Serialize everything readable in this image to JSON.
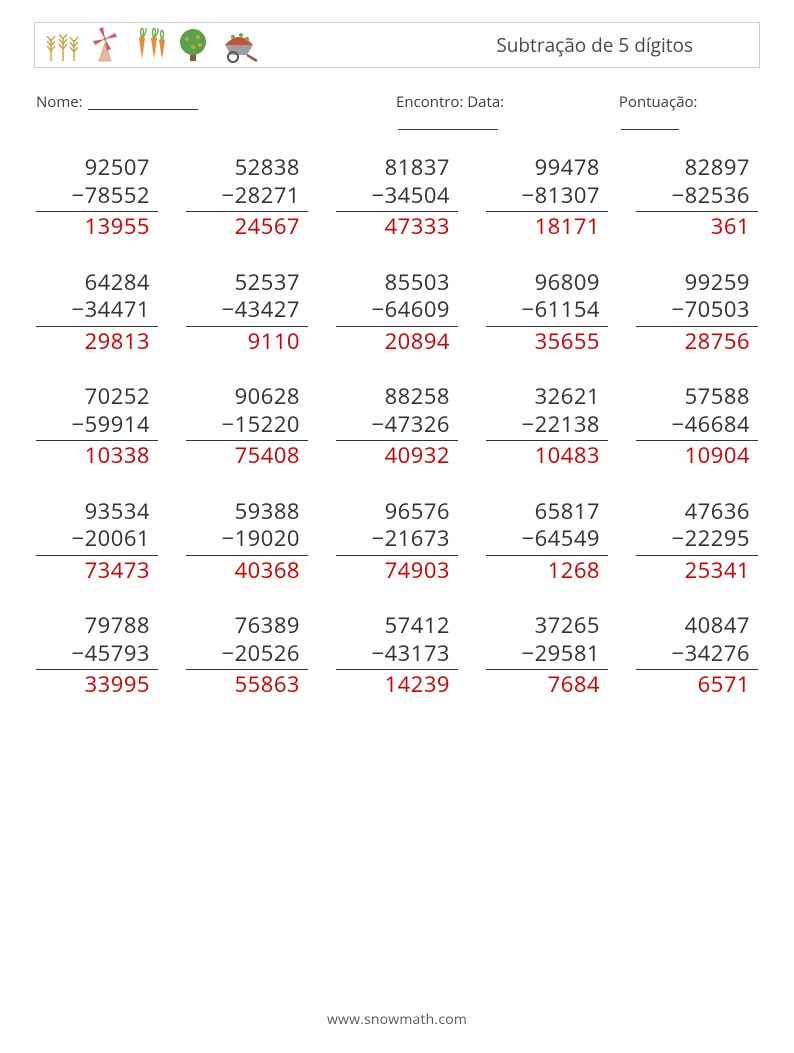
{
  "title": "Subtração de 5 dígitos",
  "labels": {
    "name": "Nome:",
    "date": "Encontro: Data:",
    "score": "Pontuação:"
  },
  "footer": "www.snowmath.com",
  "colors": {
    "text": "#353535",
    "answer": "#d40000",
    "rule": "#333333",
    "border": "#cfcfcf",
    "background": "#ffffff"
  },
  "typography": {
    "title_fontsize": 19,
    "meta_fontsize": 15,
    "problem_fontsize": 22,
    "footer_fontsize": 14
  },
  "layout": {
    "columns": 5,
    "rows": 5,
    "column_gap": 28,
    "row_gap": 28
  },
  "icons": [
    {
      "name": "wheat-icon",
      "emoji": "🌾",
      "color": "#d8b24a"
    },
    {
      "name": "windmill-icon",
      "emoji": "🍃",
      "color": "#d65a5a"
    },
    {
      "name": "carrots-icon",
      "emoji": "🥕",
      "color": "#e98c3a"
    },
    {
      "name": "tree-icon",
      "emoji": "🌳",
      "color": "#4c9b4c"
    },
    {
      "name": "wheelbarrow-icon",
      "emoji": "🧺",
      "color": "#c94f3d"
    }
  ],
  "problems": [
    {
      "a": 92507,
      "b": 78552,
      "ans": 13955
    },
    {
      "a": 52838,
      "b": 28271,
      "ans": 24567
    },
    {
      "a": 81837,
      "b": 34504,
      "ans": 47333
    },
    {
      "a": 99478,
      "b": 81307,
      "ans": 18171
    },
    {
      "a": 82897,
      "b": 82536,
      "ans": 361
    },
    {
      "a": 64284,
      "b": 34471,
      "ans": 29813
    },
    {
      "a": 52537,
      "b": 43427,
      "ans": 9110
    },
    {
      "a": 85503,
      "b": 64609,
      "ans": 20894
    },
    {
      "a": 96809,
      "b": 61154,
      "ans": 35655
    },
    {
      "a": 99259,
      "b": 70503,
      "ans": 28756
    },
    {
      "a": 70252,
      "b": 59914,
      "ans": 10338
    },
    {
      "a": 90628,
      "b": 15220,
      "ans": 75408
    },
    {
      "a": 88258,
      "b": 47326,
      "ans": 40932
    },
    {
      "a": 32621,
      "b": 22138,
      "ans": 10483
    },
    {
      "a": 57588,
      "b": 46684,
      "ans": 10904
    },
    {
      "a": 93534,
      "b": 20061,
      "ans": 73473
    },
    {
      "a": 59388,
      "b": 19020,
      "ans": 40368
    },
    {
      "a": 96576,
      "b": 21673,
      "ans": 74903
    },
    {
      "a": 65817,
      "b": 64549,
      "ans": 1268
    },
    {
      "a": 47636,
      "b": 22295,
      "ans": 25341
    },
    {
      "a": 79788,
      "b": 45793,
      "ans": 33995
    },
    {
      "a": 76389,
      "b": 20526,
      "ans": 55863
    },
    {
      "a": 57412,
      "b": 43173,
      "ans": 14239
    },
    {
      "a": 37265,
      "b": 29581,
      "ans": 7684
    },
    {
      "a": 40847,
      "b": 34276,
      "ans": 6571
    }
  ]
}
